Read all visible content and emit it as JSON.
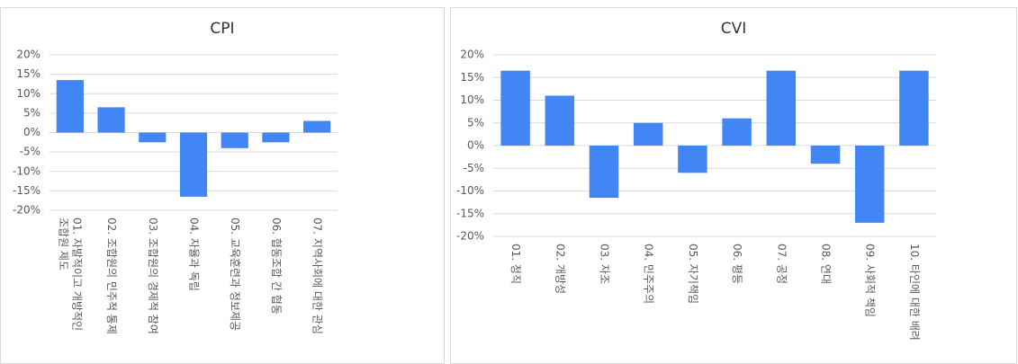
{
  "chart_data": [
    {
      "type": "bar",
      "title": "CPI",
      "categories": [
        "01. 자발적이고 개방적인 조합원 제도",
        "02. 조합원의 민주적 통제",
        "03. 조합원의 경제적 참여",
        "04. 자율과 독립",
        "05. 교육훈련과 정보제공",
        "06. 협동조합 간 협동",
        "07. 지역사회에 대한 관심"
      ],
      "values": [
        13.5,
        6.5,
        -2.5,
        -16.5,
        -4,
        -2.5,
        3
      ],
      "color": "#4285f4",
      "ylim": [
        -20,
        20
      ],
      "yticks": [
        {
          "value": -20,
          "label": "-20%"
        },
        {
          "value": -15,
          "label": "-15%"
        },
        {
          "value": -10,
          "label": "-10%"
        },
        {
          "value": -5,
          "label": "-5%"
        },
        {
          "value": 0,
          "label": "0%"
        },
        {
          "value": 5,
          "label": "5%"
        },
        {
          "value": 10,
          "label": "10%"
        },
        {
          "value": 15,
          "label": "15%"
        },
        {
          "value": 20,
          "label": "20%"
        }
      ],
      "grid": true
    },
    {
      "type": "bar",
      "title": "CVI",
      "categories": [
        "01. 정직",
        "02. 개방성",
        "03. 자조",
        "04. 민주주의",
        "05. 자기책임",
        "06. 평등",
        "07. 공정",
        "08. 연대",
        "09. 사회적 책임",
        "10. 타인에 대한 배려"
      ],
      "values": [
        16.5,
        11,
        -11.5,
        5,
        -6,
        6,
        16.5,
        -4,
        -17,
        16.5
      ],
      "color": "#4285f4",
      "ylim": [
        -20,
        20
      ],
      "yticks": [
        {
          "value": -20,
          "label": "-20%"
        },
        {
          "value": -15,
          "label": "-15%"
        },
        {
          "value": -10,
          "label": "-10%"
        },
        {
          "value": -5,
          "label": "-5%"
        },
        {
          "value": 0,
          "label": "0%"
        },
        {
          "value": 5,
          "label": "5%"
        },
        {
          "value": 10,
          "label": "10%"
        },
        {
          "value": 15,
          "label": "15%"
        },
        {
          "value": 20,
          "label": "20%"
        }
      ],
      "grid": true
    }
  ]
}
